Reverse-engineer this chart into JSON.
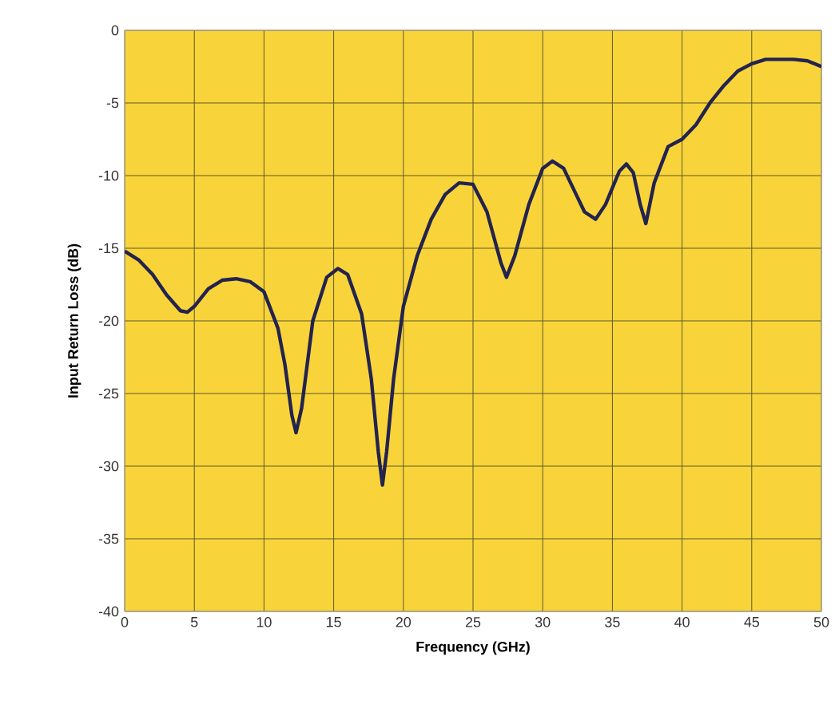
{
  "chart_data": {
    "type": "line",
    "xlabel": "Frequency (GHz)",
    "ylabel": "Input Return Loss (dB)",
    "xlim": [
      0,
      50
    ],
    "xticks": [
      0,
      5,
      10,
      15,
      20,
      25,
      30,
      35,
      40,
      45,
      50
    ],
    "ylim": [
      -40,
      0
    ],
    "yticks": [
      -40,
      -35,
      -30,
      -25,
      -20,
      -15,
      -10,
      -5,
      0
    ],
    "grid": true,
    "marker": "none",
    "line_style": "solid",
    "series": [
      {
        "color": "#23234f",
        "x": [
          0,
          1,
          2,
          3,
          4,
          4.5,
          5,
          6,
          7,
          8,
          9,
          10,
          11,
          11.5,
          12,
          12.3,
          12.7,
          13.5,
          14.5,
          15.3,
          16,
          17,
          17.7,
          18.2,
          18.5,
          18.8,
          19.3,
          20,
          21,
          22,
          23,
          24,
          25,
          26,
          27,
          27.4,
          28,
          29,
          30,
          30.7,
          31.5,
          32,
          33,
          33.8,
          34.5,
          35.5,
          36,
          36.5,
          37,
          37.4,
          38,
          39,
          40,
          41,
          42,
          43,
          44,
          45,
          46,
          47,
          48,
          49,
          50
        ],
        "values": [
          -15.2,
          -15.8,
          -16.8,
          -18.2,
          -19.3,
          -19.4,
          -19.0,
          -17.8,
          -17.2,
          -17.1,
          -17.3,
          -18.0,
          -20.5,
          -23,
          -26.5,
          -27.7,
          -26,
          -20,
          -17,
          -16.4,
          -16.8,
          -19.5,
          -24,
          -29,
          -31.3,
          -29,
          -24,
          -19,
          -15.5,
          -13,
          -11.3,
          -10.5,
          -10.6,
          -12.5,
          -16,
          -17,
          -15.5,
          -12,
          -9.5,
          -9,
          -9.5,
          -10.5,
          -12.5,
          -13,
          -12,
          -9.7,
          -9.2,
          -9.8,
          -12,
          -13.3,
          -10.5,
          -8,
          -7.5,
          -6.5,
          -5,
          -3.8,
          -2.8,
          -2.3,
          -2.0,
          -2.0,
          -2.0,
          -2.1,
          -2.5
        ]
      }
    ]
  }
}
